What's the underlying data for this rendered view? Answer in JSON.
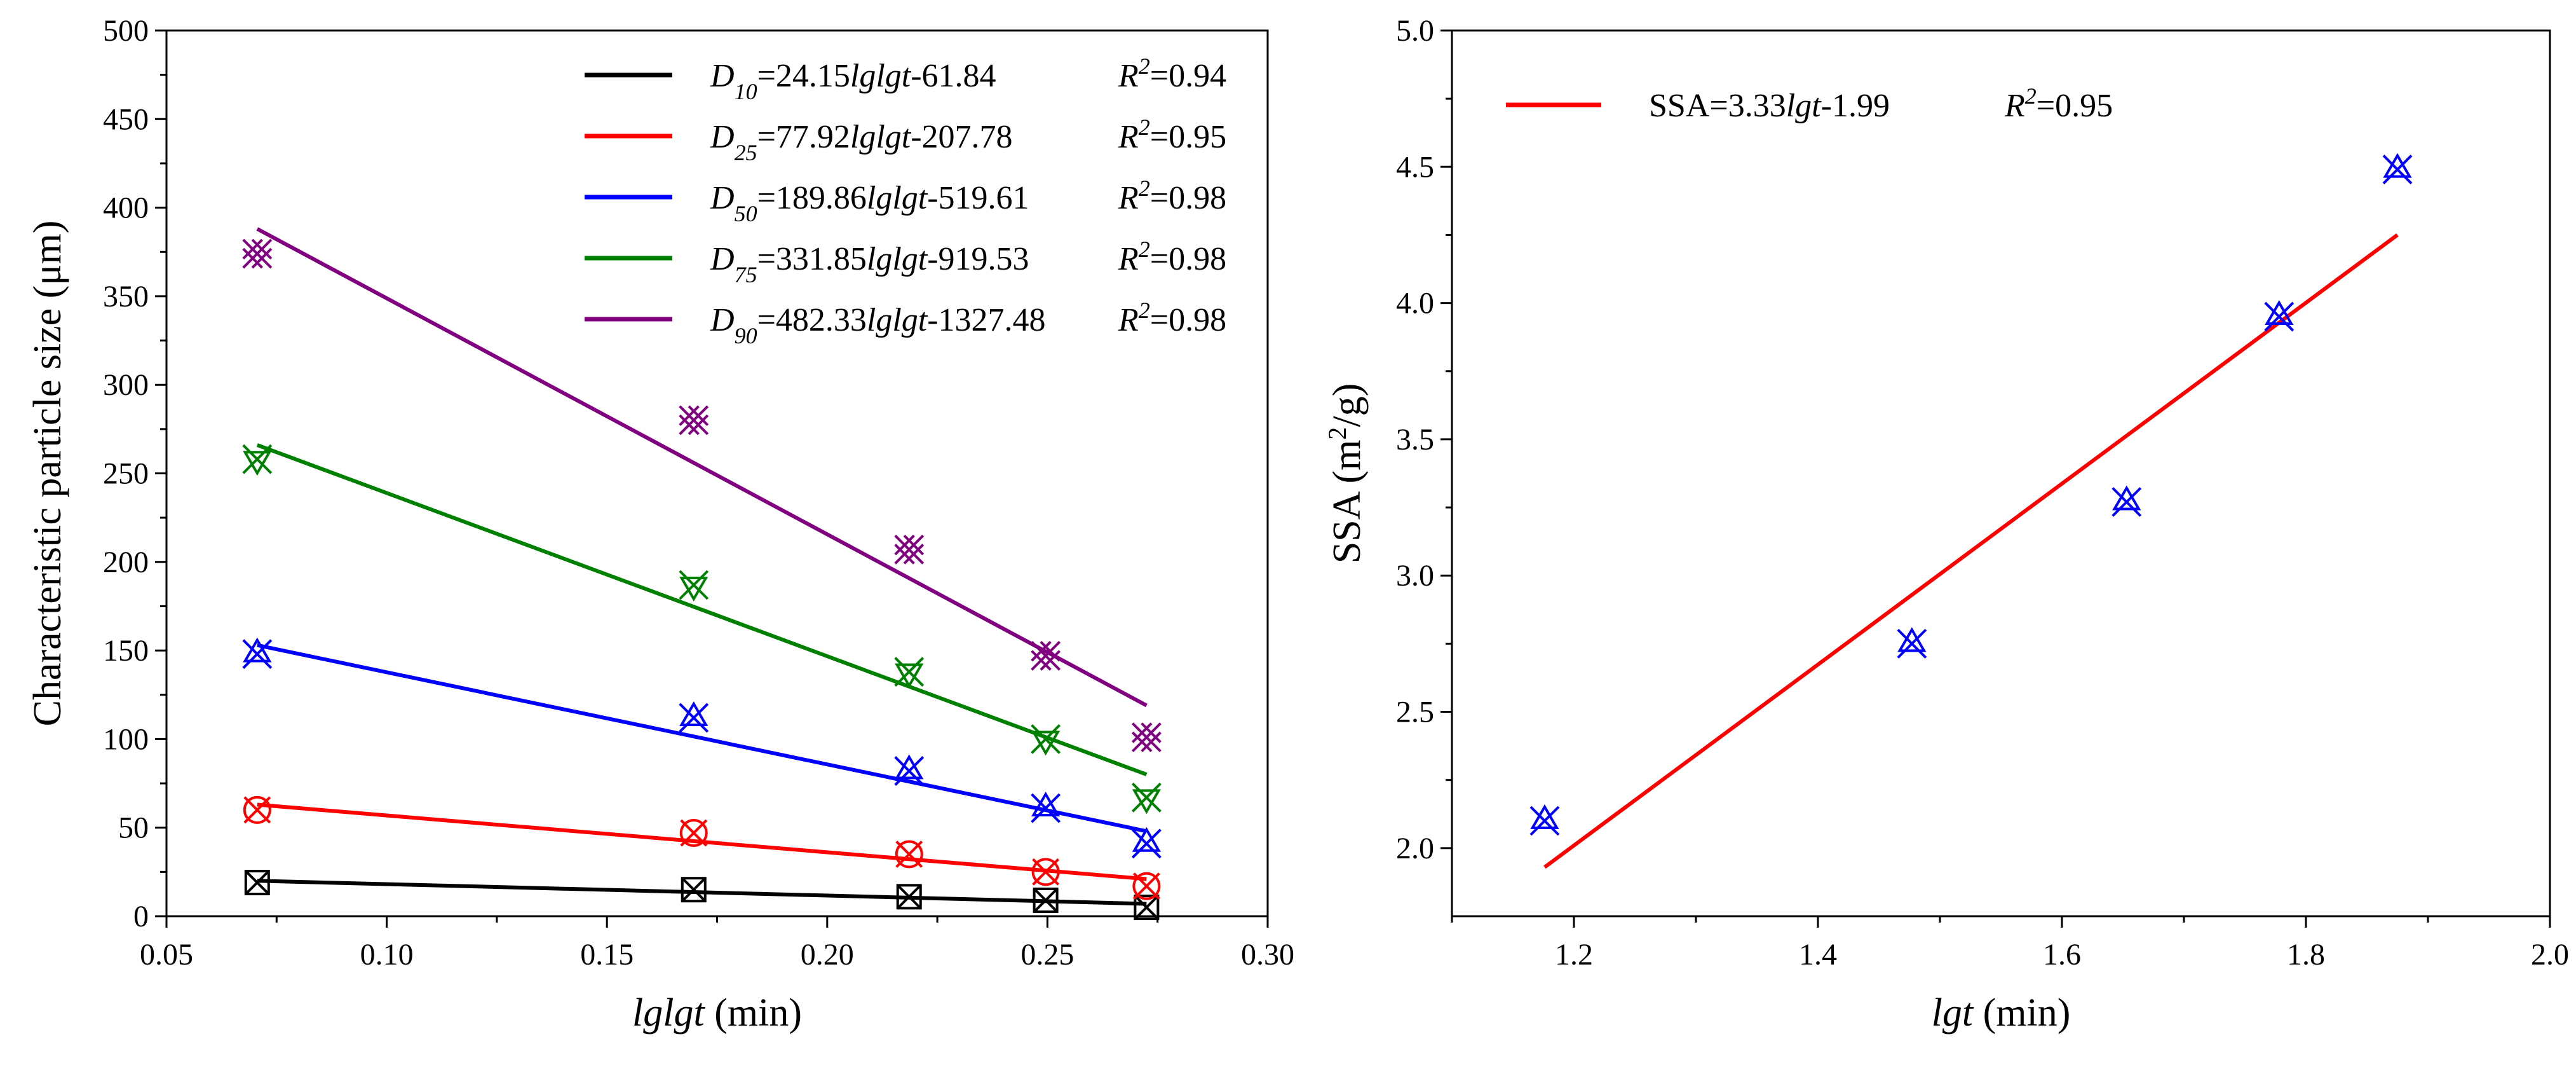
{
  "chart_data": [
    {
      "type": "scatter",
      "xlabel": {
        "italic": "lglgt",
        "unit": " (min)"
      },
      "ylabel": "Characteristic particle size (μm)",
      "xlim": [
        0.05,
        0.3
      ],
      "ylim": [
        0,
        500
      ],
      "xticks": [
        "0.05",
        "0.10",
        "0.15",
        "0.20",
        "0.25",
        "0.30"
      ],
      "yticks": [
        "0",
        "50",
        "100",
        "150",
        "200",
        "250",
        "300",
        "350",
        "400",
        "450",
        "500"
      ],
      "x": [
        0.0706,
        0.1697,
        0.2186,
        0.2496,
        0.2725
      ],
      "legend_position": "top-right",
      "series": [
        {
          "name": "D10",
          "sub": "10",
          "eq": "=24.15",
          "eq_tail": "-61.84",
          "r2": "=0.94",
          "color": "#000000",
          "marker": "box-x",
          "values": [
            19,
            15,
            11,
            9,
            5
          ],
          "fit": {
            "x0": 0.0706,
            "y0": 20,
            "x1": 0.2725,
            "y1": 7
          }
        },
        {
          "name": "D25",
          "sub": "25",
          "eq": "=77.92",
          "eq_tail": "-207.78",
          "r2": "=0.95",
          "color": "#ff0000",
          "marker": "circle-x",
          "values": [
            60,
            47,
            35,
            25,
            17
          ],
          "fit": {
            "x0": 0.0706,
            "y0": 63,
            "x1": 0.2725,
            "y1": 21
          }
        },
        {
          "name": "D50",
          "sub": "50",
          "eq": "=189.86",
          "eq_tail": "-519.61",
          "r2": "=0.98",
          "color": "#0000ff",
          "marker": "star-x",
          "values": [
            148,
            112,
            82,
            61,
            41
          ],
          "fit": {
            "x0": 0.0706,
            "y0": 153,
            "x1": 0.2725,
            "y1": 48
          }
        },
        {
          "name": "D75",
          "sub": "75",
          "eq": "=331.85",
          "eq_tail": "-919.53",
          "r2": "=0.98",
          "color": "#008000",
          "marker": "tri-x",
          "values": [
            258,
            187,
            138,
            100,
            67
          ],
          "fit": {
            "x0": 0.0706,
            "y0": 266,
            "x1": 0.2725,
            "y1": 80
          }
        },
        {
          "name": "D90",
          "sub": "90",
          "eq": "=482.33",
          "eq_tail": "-1327.48",
          "r2": "=0.98",
          "color": "#800080",
          "marker": "dbl-x",
          "values": [
            374,
            280,
            207,
            147,
            101
          ],
          "fit": {
            "x0": 0.0706,
            "y0": 388,
            "x1": 0.2725,
            "y1": 119
          }
        }
      ]
    },
    {
      "type": "scatter",
      "xlabel": {
        "italic": "lgt",
        "unit": " (min)"
      },
      "ylabel": {
        "pre": "SSA (m",
        "sup": "2",
        "post": "/g)"
      },
      "xlim": [
        1.1,
        2.0
      ],
      "ylim": [
        1.75,
        5.0
      ],
      "xticks": [
        "1.2",
        "1.4",
        "1.6",
        "1.8",
        "2.0"
      ],
      "yticks": [
        "2.0",
        "2.5",
        "3.0",
        "3.5",
        "4.0",
        "4.5",
        "5.0"
      ],
      "legend_position": "top-left",
      "series": [
        {
          "name": "SSA",
          "eq_pre": "SSA=3.33",
          "eq_italic": "lgt",
          "eq_tail": "-1.99",
          "r2": "=0.95",
          "color": "#0000ff",
          "line_color": "#ff0000",
          "marker": "star-x",
          "x": [
            1.176,
            1.477,
            1.653,
            1.778,
            1.875
          ],
          "values": [
            2.1,
            2.75,
            3.27,
            3.95,
            4.49
          ],
          "fit": {
            "x0": 1.176,
            "y0": 1.93,
            "x1": 1.875,
            "y1": 4.25
          }
        }
      ]
    }
  ]
}
